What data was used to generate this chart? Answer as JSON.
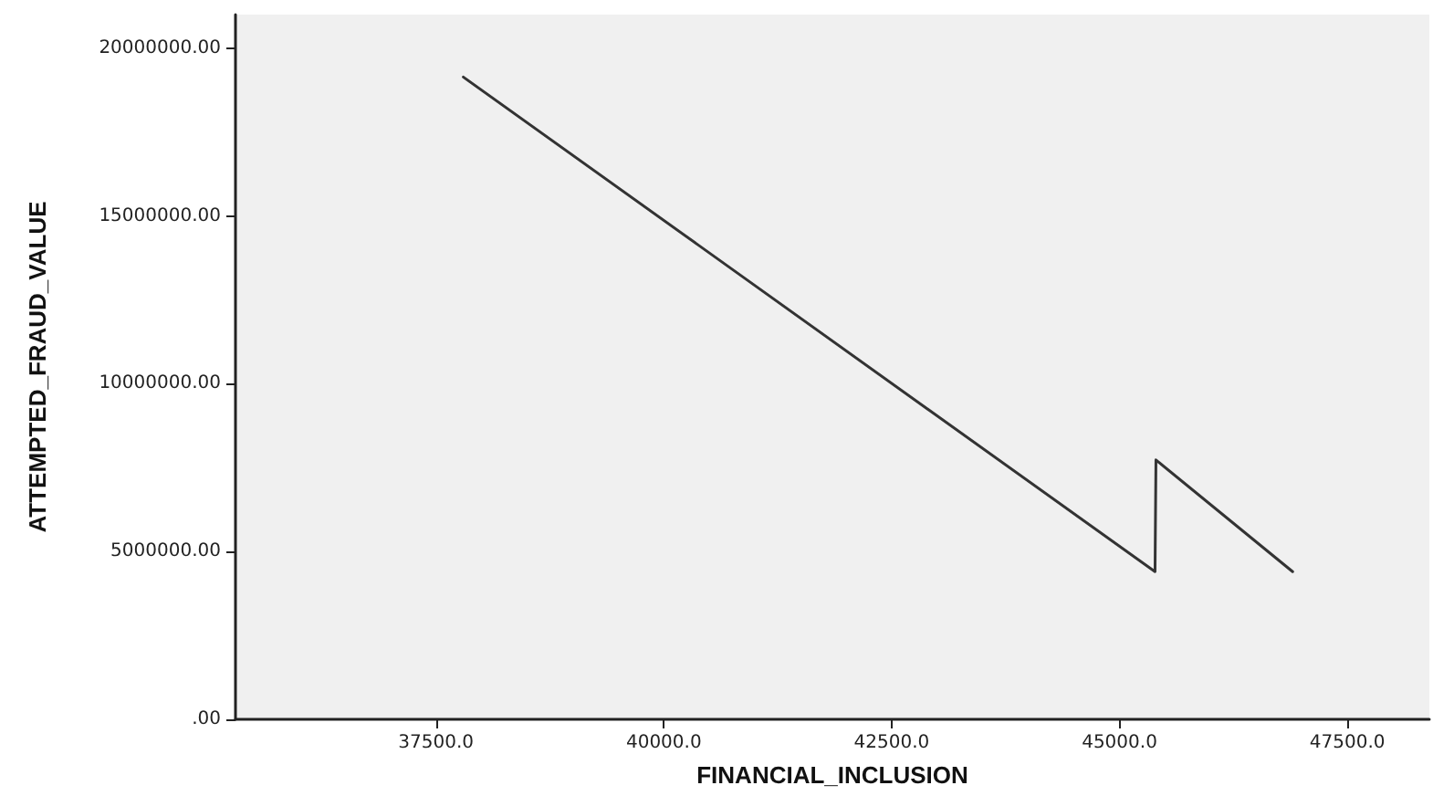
{
  "chart_data": {
    "type": "line",
    "xlabel": "FINANCIAL_INCLUSION",
    "ylabel": "ATTEMPTED_FRAUD_VALUE",
    "x": [
      37800,
      45390,
      45400,
      46900
    ],
    "series": [
      {
        "color": "#333333",
        "values": [
          19140000,
          4400000,
          7730000,
          4400000
        ]
      }
    ],
    "xlim": [
      35300,
      48400
    ],
    "xticks": [
      {
        "value": 37500,
        "label": "37500.0"
      },
      {
        "value": 40000,
        "label": "40000.0"
      },
      {
        "value": 42500,
        "label": "42500.0"
      },
      {
        "value": 45000,
        "label": "45000.0"
      },
      {
        "value": 47500,
        "label": "47500.0"
      }
    ],
    "ylim": [
      0,
      21000000
    ],
    "yticks": [
      {
        "value": 0,
        "label": ".00"
      },
      {
        "value": 5000000,
        "label": "5000000.00"
      },
      {
        "value": 10000000,
        "label": "10000000.00"
      },
      {
        "value": 15000000,
        "label": "15000000.00"
      },
      {
        "value": 20000000,
        "label": "20000000.00"
      }
    ],
    "grid": false,
    "marker": "none",
    "line_style": "solid"
  }
}
